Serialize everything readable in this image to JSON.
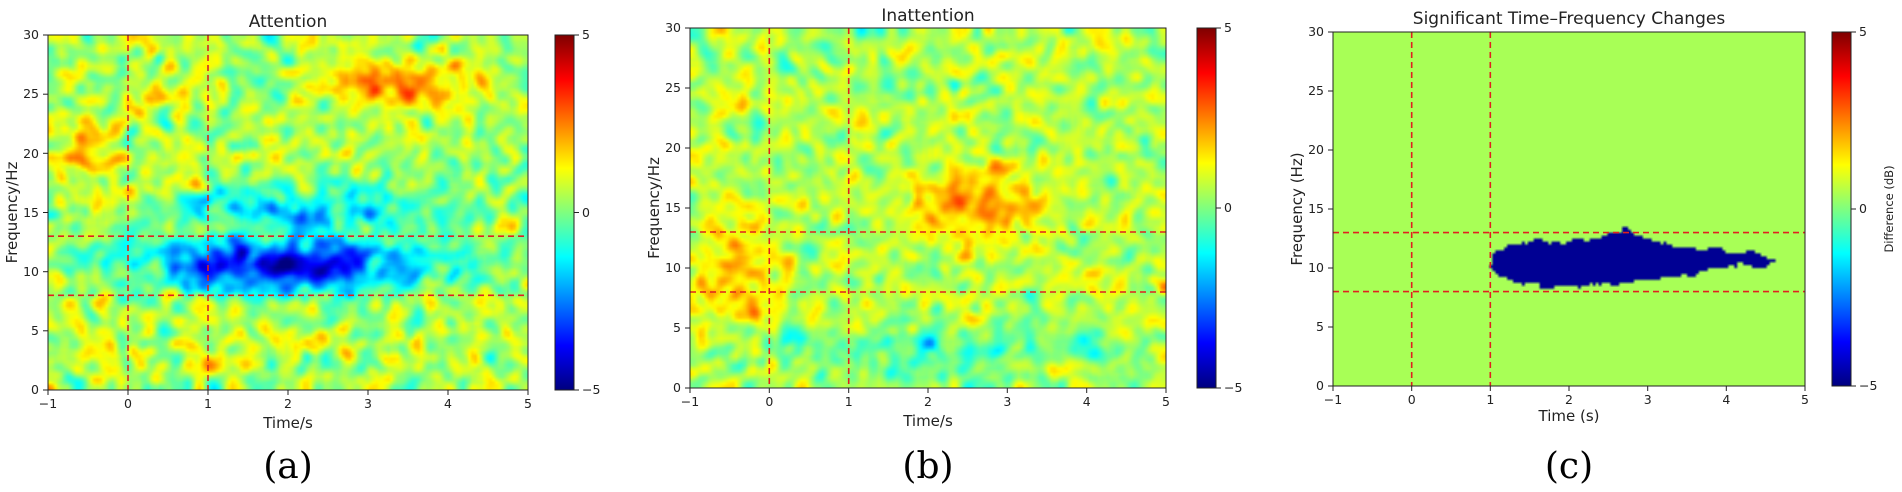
{
  "chart_data": [
    {
      "type": "heatmap",
      "title": "Attention",
      "xlabel": "Time/s",
      "ylabel": "Frequency/Hz",
      "xlim": [
        -1,
        5
      ],
      "ylim": [
        0,
        30
      ],
      "xticks": [
        "−1",
        "0",
        "1",
        "2",
        "3",
        "4",
        "5"
      ],
      "yticks": [
        "0",
        "5",
        "10",
        "15",
        "20",
        "25",
        "30"
      ],
      "colorbar": {
        "range": [
          -5,
          5
        ],
        "ticks": [
          "−5",
          "0",
          "5"
        ],
        "label": ""
      },
      "reference_lines": {
        "time_s": [
          0,
          1
        ],
        "frequency_hz": [
          8,
          13
        ],
        "color": "#e02020"
      },
      "features": [
        {
          "t_center": 2.0,
          "f_center": 10.5,
          "t_width": 3.5,
          "f_width": 4.5,
          "value": -4.6
        },
        {
          "t_center": 2.3,
          "f_center": 15.5,
          "t_width": 3.5,
          "f_width": 4.0,
          "value": -2.2
        },
        {
          "t_center": 3.3,
          "f_center": 26.0,
          "t_width": 1.6,
          "f_width": 4.0,
          "value": 2.2
        },
        {
          "t_center": -0.5,
          "f_center": 20.0,
          "t_width": 1.0,
          "f_width": 6.0,
          "value": 1.2
        }
      ],
      "caption": "(a)"
    },
    {
      "type": "heatmap",
      "title": "Inattention",
      "xlabel": "Time/s",
      "ylabel": "Frequency/Hz",
      "xlim": [
        -1,
        5
      ],
      "ylim": [
        0,
        30
      ],
      "xticks": [
        "−1",
        "0",
        "1",
        "2",
        "3",
        "4",
        "5"
      ],
      "yticks": [
        "0",
        "5",
        "10",
        "15",
        "20",
        "25",
        "30"
      ],
      "colorbar": {
        "range": [
          -5,
          5
        ],
        "ticks": [
          "−5",
          "0",
          "5"
        ],
        "label": ""
      },
      "reference_lines": {
        "time_s": [
          0,
          1
        ],
        "frequency_hz": [
          8,
          13
        ],
        "color": "#e02020"
      },
      "features": [
        {
          "t_center": 2.6,
          "f_center": 15.0,
          "t_width": 1.6,
          "f_width": 6.0,
          "value": 1.8
        },
        {
          "t_center": -0.4,
          "f_center": 10.5,
          "t_width": 1.2,
          "f_width": 8.0,
          "value": 1.3
        },
        {
          "t_center": 2.2,
          "f_center": 3.0,
          "t_width": 3.5,
          "f_width": 4.0,
          "value": -1.2
        }
      ],
      "caption": "(b)"
    },
    {
      "type": "heatmap",
      "title": "Significant Time–Frequency Changes",
      "xlabel": "Time (s)",
      "ylabel": "Frequency (Hz)",
      "xlim": [
        -1,
        5
      ],
      "ylim": [
        0,
        30
      ],
      "xticks": [
        "−1",
        "0",
        "1",
        "2",
        "3",
        "4",
        "5"
      ],
      "yticks": [
        "0",
        "5",
        "10",
        "15",
        "20",
        "25",
        "30"
      ],
      "colorbar": {
        "range": [
          -5,
          5
        ],
        "ticks": [
          "−5",
          "0",
          "5"
        ],
        "label": "Difference (dB)"
      },
      "reference_lines": {
        "time_s": [
          0,
          1
        ],
        "frequency_hz": [
          8,
          13
        ],
        "color": "#e02020"
      },
      "background_value": 0.4,
      "significant_region": {
        "value": -4.8,
        "outline_time_freq": [
          [
            1.0,
            11.0
          ],
          [
            1.2,
            11.8
          ],
          [
            1.5,
            12.3
          ],
          [
            1.8,
            12.1
          ],
          [
            2.1,
            12.4
          ],
          [
            2.4,
            12.6
          ],
          [
            2.7,
            13.3
          ],
          [
            3.0,
            12.4
          ],
          [
            3.3,
            12.0
          ],
          [
            3.6,
            11.6
          ],
          [
            3.9,
            11.7
          ],
          [
            4.1,
            11.3
          ],
          [
            4.3,
            11.4
          ],
          [
            4.5,
            11.0
          ],
          [
            4.6,
            10.6
          ],
          [
            4.5,
            10.0
          ],
          [
            4.2,
            10.4
          ],
          [
            3.9,
            10.0
          ],
          [
            3.6,
            9.5
          ],
          [
            3.2,
            9.2
          ],
          [
            2.9,
            8.8
          ],
          [
            2.5,
            8.6
          ],
          [
            2.2,
            8.5
          ],
          [
            1.8,
            8.4
          ],
          [
            1.5,
            8.5
          ],
          [
            1.2,
            9.0
          ],
          [
            1.0,
            9.8
          ]
        ]
      },
      "caption": "(c)"
    }
  ]
}
